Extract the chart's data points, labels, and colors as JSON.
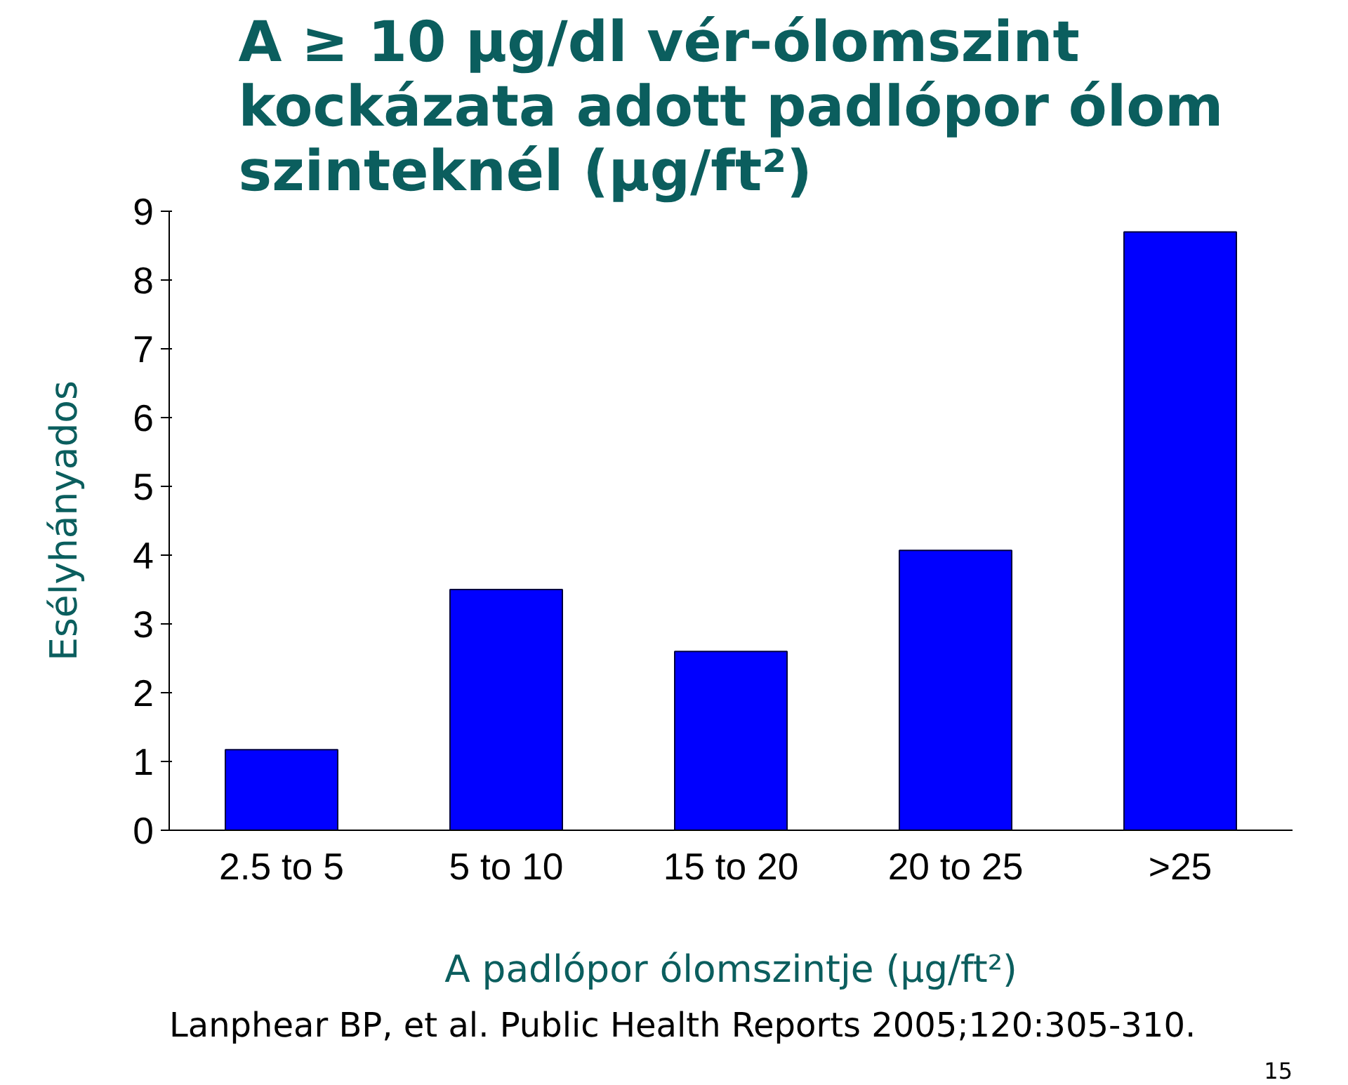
{
  "chart_data": {
    "type": "bar",
    "title": "A ≥ 10 μg/dl vér-ólomszint\nkockázata adott padlópor ólom\nszinteknél (μg/ft²)",
    "ylabel": "Esélyhányados",
    "xlabel": "A padlópor ólomszintje (μg/ft²)",
    "categories": [
      "2.5 to 5",
      "5 to 10",
      "15 to 20",
      "20 to 25",
      ">25"
    ],
    "values": [
      1.17,
      3.5,
      2.6,
      4.07,
      8.7
    ],
    "color": "#0000ff",
    "ylim": [
      0,
      9
    ],
    "yticks": [
      0,
      1,
      2,
      3,
      4,
      5,
      6,
      7,
      8,
      9
    ],
    "grid": false,
    "annotations": [
      "Lanphear BP, et al. Public Health Reports 2005;120:305-310.",
      "15"
    ]
  }
}
